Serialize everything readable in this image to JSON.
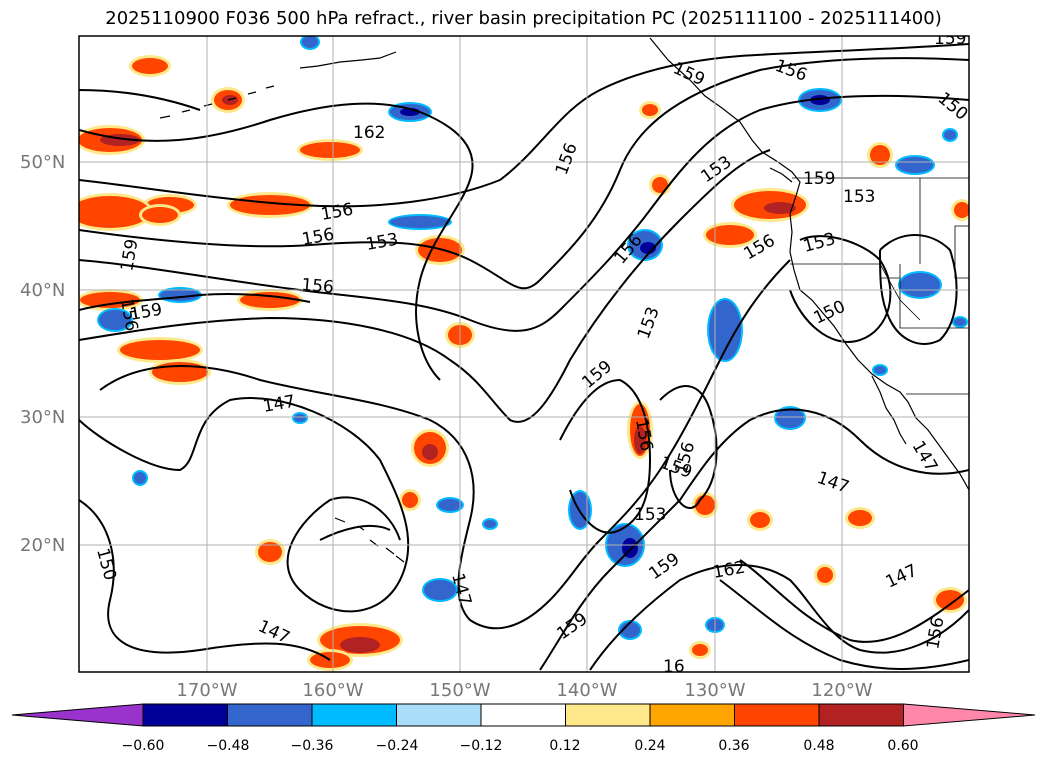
{
  "title": "2025110900 F036 500 hPa refract., river basin precipitation PC (2025111100 - 2025111400)",
  "latitude_labels": [
    "50°N",
    "40°N",
    "30°N",
    "20°N"
  ],
  "longitude_labels": [
    "170°W",
    "160°W",
    "150°W",
    "140°W",
    "130°W",
    "120°W"
  ],
  "colorbar": {
    "tick_labels": [
      "−0.60",
      "−0.48",
      "−0.36",
      "−0.24",
      "−0.12",
      "0.12",
      "0.24",
      "0.36",
      "0.48",
      "0.60"
    ],
    "colors": [
      "#9933cc",
      "#000099",
      "#3366cc",
      "#00bbff",
      "#aaddf8",
      "#ffffff",
      "#ffe88a",
      "#ffa500",
      "#ff4500",
      "#b22222",
      "#ff88aa"
    ]
  },
  "contour_labels": [
    "162",
    "159",
    "156",
    "159",
    "156",
    "153",
    "159",
    "156",
    "156",
    "153",
    "153",
    "156",
    "159",
    "153",
    "156",
    "147",
    "150",
    "156",
    "153",
    "156",
    "159",
    "159",
    "156",
    "159",
    "156",
    "147",
    "147",
    "153",
    "147",
    "162",
    "147",
    "159",
    "159",
    "16",
    "156",
    "147",
    "150",
    "150"
  ],
  "colors": {
    "contour": "#000000",
    "coastline": "#000000",
    "grid": "#b0b0b0",
    "axis_label": "#777777"
  }
}
